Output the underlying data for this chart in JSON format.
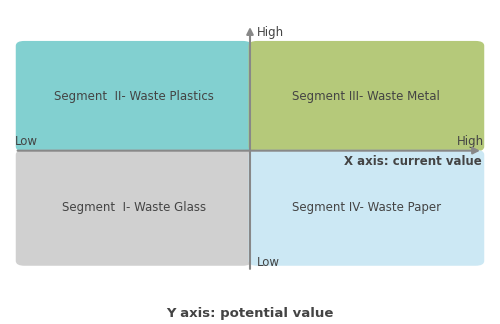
{
  "title": "Y axis: potential value",
  "x_axis_label": "X axis: current value",
  "segments": [
    {
      "label": "Segment  II- Waste Plastics",
      "color": "#82d0d0",
      "quad": "top_left"
    },
    {
      "label": "Segment III- Waste Metal",
      "color": "#b5c97a",
      "quad": "top_right"
    },
    {
      "label": "Segment  I- Waste Glass",
      "color": "#d0d0d0",
      "quad": "bot_left"
    },
    {
      "label": "Segment IV- Waste Paper",
      "color": "#cce8f4",
      "quad": "bot_right"
    }
  ],
  "axis_labels": {
    "high_y": "High",
    "low_y": "Low",
    "high_x": "High",
    "low_x": "Low"
  },
  "font_size_segment": 8.5,
  "font_size_axis_label": 8.5,
  "font_size_title": 9.5,
  "background_color": "#ffffff",
  "axis_color": "#888888",
  "text_color": "#444444"
}
